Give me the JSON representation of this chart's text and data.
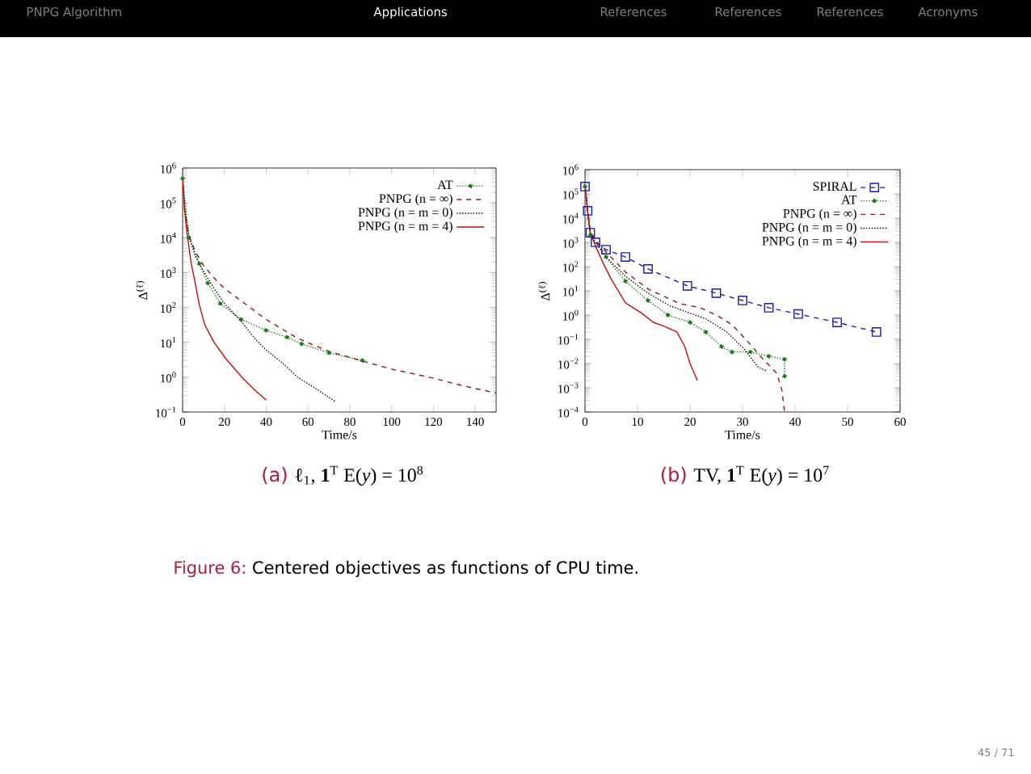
{
  "chart_data": [
    {
      "type": "line",
      "log": "y",
      "xlabel": "Time/s",
      "ylabel": "Δ$^{(ℓ)}$",
      "legend": "top right",
      "xlim": [
        0,
        150
      ],
      "xticks": [
        0,
        20,
        40,
        60,
        80,
        100,
        120,
        140
      ],
      "ylim": [
        0.1,
        1000000
      ],
      "yticks": [
        {
          "value": 0.1,
          "label": "10$^{−1}$"
        },
        {
          "value": 1,
          "label": "10$^{0}$"
        },
        {
          "value": 10,
          "label": "10$^{1}$"
        },
        {
          "value": 100,
          "label": "10$^{2}$"
        },
        {
          "value": 1000,
          "label": "10$^{3}$"
        },
        {
          "value": 10000,
          "label": "10$^{4}$"
        },
        {
          "value": 100000,
          "label": "10$^{5}$"
        },
        {
          "value": 1000000,
          "label": "10$^{6}$"
        }
      ],
      "annotations": [
        "(a)",
        "ℓ$_{1}$, **1**$^{T}$ E(*y*) = 10$^{8}$",
        "PNPG Algorithm",
        "Applications",
        "References",
        "References",
        "References",
        "Acronyms",
        "Figure 6:",
        "Centered objectives as functions of CPU time.",
        "45 / 71"
      ],
      "series": [
        {
          "name": "AT",
          "color": "#1a7a1a",
          "marker": "circle",
          "line_style": "dotted",
          "x": [
            0,
            3,
            8,
            12,
            18,
            28,
            40,
            50,
            57,
            70,
            86
          ],
          "values": [
            500000,
            10000,
            1800,
            500,
            130,
            45,
            22,
            14,
            9,
            5,
            3
          ]
        },
        {
          "name": "PNPG (n = ∞)",
          "color": "#8b1a1a",
          "line_style": "dashed",
          "x": [
            0,
            1,
            3,
            6,
            10,
            15,
            20,
            29,
            40,
            55,
            70,
            87,
            100,
            118,
            135,
            150
          ],
          "values": [
            500000,
            60000,
            12000,
            4000,
            1600,
            700,
            350,
            140,
            45,
            13,
            5.5,
            2.8,
            1.7,
            1,
            0.55,
            0.35
          ]
        },
        {
          "name": "PNPG (n = m = 0)",
          "color": "#000000",
          "line_style": "dotted",
          "x": [
            0,
            1,
            3,
            6,
            10,
            15,
            20,
            28,
            35,
            40,
            48,
            55,
            63,
            73
          ],
          "values": [
            500000,
            60000,
            12000,
            3000,
            1100,
            350,
            130,
            40,
            12,
            6,
            2.5,
            1,
            0.5,
            0.2
          ]
        },
        {
          "name": "PNPG (n = m = 4)",
          "color": "#c01010",
          "line_style": "solid",
          "x": [
            0,
            1,
            2,
            4,
            6,
            8,
            10.5,
            15,
            21,
            29,
            35,
            40
          ],
          "values": [
            500000,
            60000,
            15000,
            2000,
            500,
            120,
            33,
            10,
            3.2,
            0.9,
            0.4,
            0.22
          ]
        }
      ]
    },
    {
      "type": "line",
      "log": "y",
      "xlabel": "Time/s",
      "ylabel": "Δ$^{(ℓ)}$",
      "legend": "top right",
      "xlim": [
        0,
        60
      ],
      "xticks": [
        0,
        10,
        20,
        30,
        40,
        50,
        60
      ],
      "ylim": [
        0.0001,
        1000000
      ],
      "yticks": [
        {
          "value": 0.0001,
          "label": "10$^{−4}$"
        },
        {
          "value": 0.001,
          "label": "10$^{−3}$"
        },
        {
          "value": 0.01,
          "label": "10$^{−2}$"
        },
        {
          "value": 0.1,
          "label": "10$^{−1}$"
        },
        {
          "value": 1,
          "label": "10$^{0}$"
        },
        {
          "value": 10,
          "label": "10$^{1}$"
        },
        {
          "value": 100,
          "label": "10$^{2}$"
        },
        {
          "value": 1000,
          "label": "10$^{3}$"
        },
        {
          "value": 10000,
          "label": "10$^{4}$"
        },
        {
          "value": 100000,
          "label": "10$^{5}$"
        },
        {
          "value": 1000000,
          "label": "10$^{6}$"
        }
      ],
      "annotations": [
        "(b)",
        "TV, **1**$^{T}$ E(*y*) = 10$^{7}$"
      ],
      "series": [
        {
          "name": "SPIRAL",
          "color": "#1a1aa0",
          "marker": "square",
          "line_style": "dashed",
          "x": [
            0,
            0.5,
            1,
            2,
            4,
            7.7,
            12,
            19.5,
            25,
            30,
            35,
            40.6,
            48,
            55.5
          ],
          "values": [
            200000,
            20000,
            2500,
            1000,
            500,
            250,
            80,
            16,
            8,
            4,
            2,
            1.1,
            0.5,
            0.2
          ]
        },
        {
          "name": "AT",
          "color": "#1a7a1a",
          "marker": "circle",
          "line_style": "dotted",
          "x": [
            0,
            1,
            4,
            7.7,
            12,
            15.8,
            20,
            23,
            26,
            28,
            31.5,
            35,
            38,
            38
          ],
          "values": [
            200000,
            2000,
            250,
            25,
            4,
            1,
            0.5,
            0.2,
            0.05,
            0.03,
            0.03,
            0.02,
            0.015,
            0.003
          ]
        },
        {
          "name": "PNPG (n = ∞)",
          "color": "#8b1a1a",
          "line_style": "dashed",
          "x": [
            0,
            0.5,
            1,
            2,
            4,
            7.7,
            12,
            18,
            22,
            25,
            28,
            31,
            33.4,
            36.5,
            37.5,
            38
          ],
          "values": [
            200000,
            20000,
            3000,
            1200,
            400,
            60,
            12,
            3,
            2,
            1,
            0.4,
            0.08,
            0.02,
            0.004,
            0.0008,
            0.0001
          ]
        },
        {
          "name": "PNPG (n = m = 0)",
          "color": "#000000",
          "line_style": "dotted",
          "x": [
            0,
            0.5,
            1,
            2,
            4,
            7.7,
            12,
            16,
            20,
            23,
            27,
            30.3,
            33,
            34.5
          ],
          "values": [
            200000,
            20000,
            2500,
            1000,
            250,
            40,
            8,
            2.5,
            1.2,
            0.7,
            0.2,
            0.04,
            0.007,
            0.005
          ]
        },
        {
          "name": "PNPG (n = m = 4)",
          "color": "#c01010",
          "line_style": "solid",
          "x": [
            0,
            0.5,
            1,
            2,
            3.6,
            5,
            7.7,
            10.8,
            13,
            15,
            17.5,
            19,
            20,
            21.4
          ],
          "values": [
            200000,
            20000,
            2500,
            700,
            120,
            30,
            3.2,
            1.2,
            0.5,
            0.35,
            0.2,
            0.05,
            0.01,
            0.002
          ]
        }
      ]
    }
  ]
}
